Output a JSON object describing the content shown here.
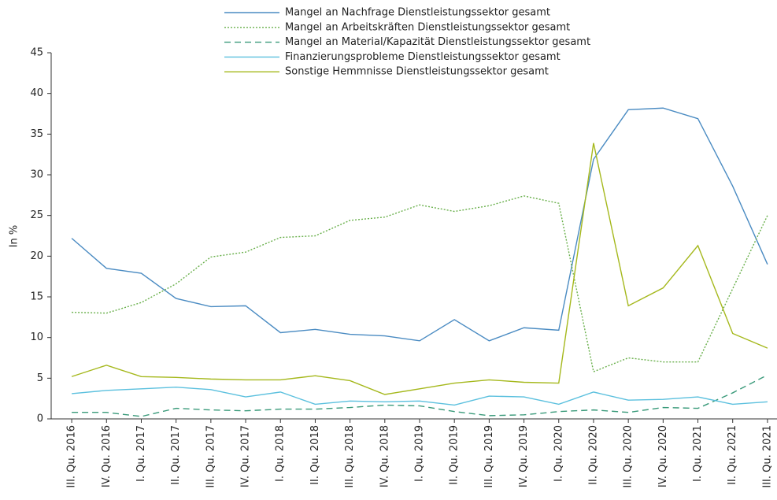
{
  "chart_data": {
    "type": "line",
    "ylabel": "In %",
    "categories": [
      "III. Qu. 2016",
      "IV. Qu. 2016",
      "I. Qu. 2017",
      "II. Qu. 2017",
      "III. Qu. 2017",
      "IV. Qu. 2017",
      "I. Qu. 2018",
      "II. Qu. 2018",
      "III. Qu. 2018",
      "IV. Qu. 2018",
      "I. Qu. 2019",
      "II. Qu. 2019",
      "III. Qu. 2019",
      "IV. Qu. 2019",
      "I. Qu. 2020",
      "II. Qu. 2020",
      "III. Qu. 2020",
      "IV. Qu. 2020",
      "I. Qu. 2021",
      "II. Qu. 2021",
      "III. Qu. 2021"
    ],
    "series": [
      {
        "name": "Mangel an Nachfrage Dienstleistungssektor gesamt",
        "color": "#4a8bc2",
        "dash": "solid",
        "values": [
          22.2,
          18.5,
          17.9,
          14.8,
          13.8,
          13.9,
          10.6,
          11.0,
          10.4,
          10.2,
          9.6,
          12.2,
          9.6,
          11.2,
          10.9,
          31.9,
          38.0,
          38.2,
          36.9,
          28.6,
          19.0
        ]
      },
      {
        "name": "Mangel an Arbeitskräften Dienstleistungssektor gesamt",
        "color": "#6ab04c",
        "dash": "dotted",
        "values": [
          13.1,
          13.0,
          14.3,
          16.6,
          19.9,
          20.5,
          22.3,
          22.5,
          24.4,
          24.8,
          26.3,
          25.5,
          26.2,
          27.4,
          26.5,
          5.8,
          7.5,
          7.0,
          7.0,
          16.0,
          25.0
        ]
      },
      {
        "name": "Mangel an Material/Kapazität Dienstleistungssektor gesamt",
        "color": "#3a9a7a",
        "dash": "dashed",
        "values": [
          0.8,
          0.8,
          0.3,
          1.3,
          1.1,
          1.0,
          1.2,
          1.2,
          1.4,
          1.7,
          1.6,
          0.9,
          0.4,
          0.5,
          0.9,
          1.1,
          0.8,
          1.4,
          1.3,
          3.2,
          5.4
        ]
      },
      {
        "name": "Finanzierungsprobleme Dienstleistungssektor gesamt",
        "color": "#5bc0de",
        "dash": "solid",
        "values": [
          3.1,
          3.5,
          3.7,
          3.9,
          3.6,
          2.7,
          3.3,
          1.8,
          2.2,
          2.1,
          2.2,
          1.7,
          2.8,
          2.7,
          1.8,
          3.3,
          2.3,
          2.4,
          2.7,
          1.8,
          2.1
        ]
      },
      {
        "name": "Sonstige Hemmnisse Dienstleistungssektor gesamt",
        "color": "#a5b81c",
        "dash": "solid",
        "values": [
          5.2,
          6.6,
          5.2,
          5.1,
          4.9,
          4.8,
          4.8,
          5.3,
          4.7,
          3.0,
          3.7,
          4.4,
          4.8,
          4.5,
          4.4,
          33.9,
          13.9,
          16.1,
          21.3,
          10.5,
          8.7
        ]
      }
    ],
    "ylim": [
      0,
      45
    ],
    "yticks": [
      0,
      5,
      10,
      15,
      20,
      25,
      30,
      35,
      40,
      45
    ],
    "grid": false,
    "legend": "top"
  }
}
